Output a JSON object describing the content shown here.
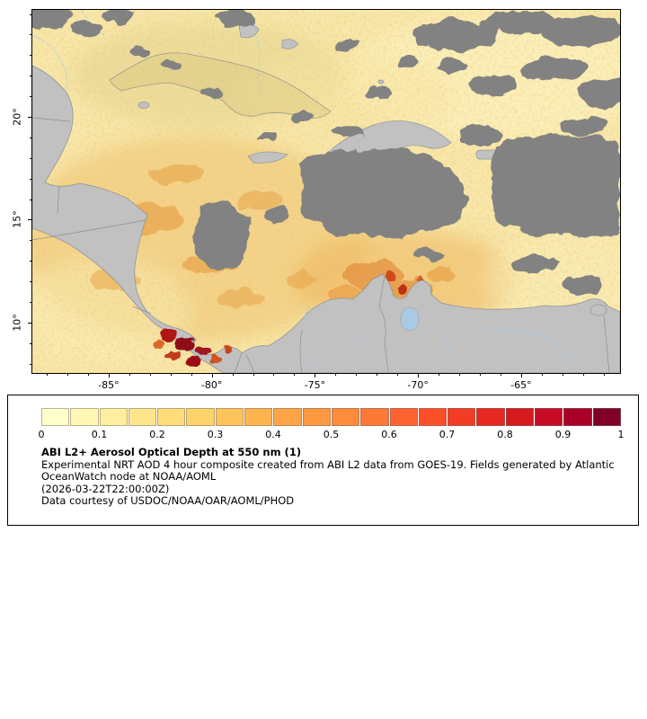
{
  "map": {
    "lon_axis": {
      "min": -88.7,
      "max": -60.2,
      "major_ticks": [
        -85,
        -80,
        -75,
        -70,
        -65
      ],
      "major_labels": [
        "-85°",
        "-80°",
        "-75°",
        "-70°",
        "-65°"
      ]
    },
    "lat_axis": {
      "min": 7.55,
      "max": 25.2,
      "major_ticks": [
        20,
        15,
        10
      ],
      "major_labels": [
        "20°",
        "15°",
        "10°"
      ]
    }
  },
  "legend": {
    "title": "ABI L2+ Aerosol Optical Depth at 550 nm (1)",
    "description": "Experimental NRT AOD 4 hour composite created from ABI L2 data from GOES-19. Fields generated by Atlantic OceanWatch node at NOAA/AOML",
    "timestamp": "(2026-03-22T22:00:00Z)",
    "courtesy": "Data courtesy of USDOC/NOAA/OAR/AOML/PHOD",
    "colorbar": {
      "min": 0,
      "max": 1,
      "tick_labels": [
        "0",
        "0.1",
        "0.2",
        "0.3",
        "0.4",
        "0.5",
        "0.6",
        "0.7",
        "0.8",
        "0.9",
        "1"
      ],
      "colors": [
        "#ffffcc",
        "#fff7b3",
        "#ffee9e",
        "#fee58b",
        "#fedd79",
        "#fed36b",
        "#fec45c",
        "#feb44e",
        "#fda546",
        "#fd9941",
        "#fd8c3c",
        "#fd7937",
        "#fc6330",
        "#fb4f29",
        "#f23d24",
        "#e62821",
        "#d51a20",
        "#c60b24",
        "#a80026",
        "#800026"
      ]
    }
  },
  "colors": {
    "land": "#c1c1c1",
    "cloud": "#828282",
    "river": "#aac9e4",
    "border": "#8f8f8f",
    "aod_base": "#f7e7a9"
  },
  "chart_data": {
    "type": "heatmap",
    "title": "ABI L2+ Aerosol Optical Depth at 550 nm (1)",
    "x_ticks": [
      -85,
      -80,
      -75,
      -70,
      -65
    ],
    "y_ticks": [
      10,
      15,
      20
    ],
    "x_range": [
      -88.7,
      -60.2
    ],
    "y_range": [
      7.55,
      25.2
    ],
    "colorbar_ticks": [
      0,
      0.1,
      0.2,
      0.3,
      0.4,
      0.5,
      0.6,
      0.7,
      0.8,
      0.9,
      1
    ],
    "value_range": [
      0,
      1
    ]
  }
}
